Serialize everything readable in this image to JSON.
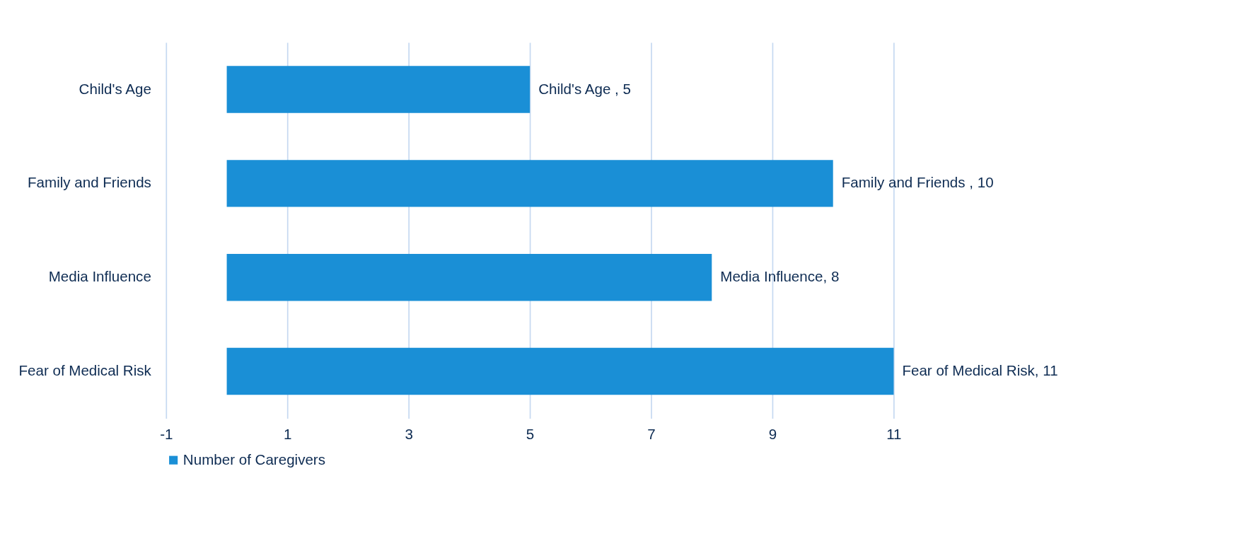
{
  "chart_data": {
    "type": "bar",
    "orientation": "horizontal",
    "categories": [
      "Child's Age",
      "Family and Friends",
      "Media Influence",
      "Fear of Medical Risk"
    ],
    "series": [
      {
        "name": "Number of Caregivers",
        "color": "#1a8fd6",
        "values": [
          5,
          10,
          8,
          11
        ],
        "value_labels": [
          "Child's Age , 5",
          "Family and Friends , 10",
          "Media Influence, 8",
          "Fear of Medical Risk, 11"
        ]
      }
    ],
    "xlim": [
      -1,
      11
    ],
    "xticks": [
      -1,
      1,
      3,
      5,
      7,
      9,
      11
    ],
    "grid": "x",
    "legend": "bottom"
  }
}
